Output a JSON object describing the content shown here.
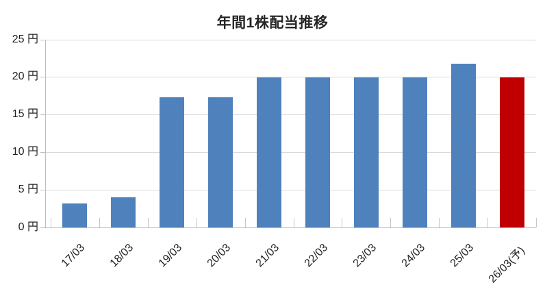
{
  "chart_data": {
    "type": "bar",
    "title": "年間1株配当推移",
    "categories": [
      "17/03",
      "18/03",
      "19/03",
      "20/03",
      "21/03",
      "22/03",
      "23/03",
      "24/03",
      "25/03",
      "26/03(予)"
    ],
    "series": [
      {
        "name": "年間1株配当",
        "values": [
          3.2,
          4.0,
          17.3,
          17.3,
          19.9,
          19.9,
          19.9,
          19.9,
          21.8,
          19.9
        ]
      }
    ],
    "bar_colors": [
      "#4F81BD",
      "#4F81BD",
      "#4F81BD",
      "#4F81BD",
      "#4F81BD",
      "#4F81BD",
      "#4F81BD",
      "#4F81BD",
      "#4F81BD",
      "#C00000"
    ],
    "unit": "円",
    "yticks": [
      0,
      5,
      10,
      15,
      20,
      25
    ],
    "ytick_labels": [
      "0 円",
      "5 円",
      "10 円",
      "15 円",
      "20 円",
      "25 円"
    ],
    "ylim": [
      0,
      25
    ],
    "xlabel": "",
    "ylabel": "",
    "grid": "horizontal",
    "legend": "none",
    "colors": {
      "default_bar": "#4F81BD",
      "highlight_bar": "#C00000",
      "gridline": "#D9D9D9",
      "axis": "#BFBFBF",
      "title_text": "#262626",
      "label_text": "#212121",
      "background": "#FFFFFF"
    }
  }
}
